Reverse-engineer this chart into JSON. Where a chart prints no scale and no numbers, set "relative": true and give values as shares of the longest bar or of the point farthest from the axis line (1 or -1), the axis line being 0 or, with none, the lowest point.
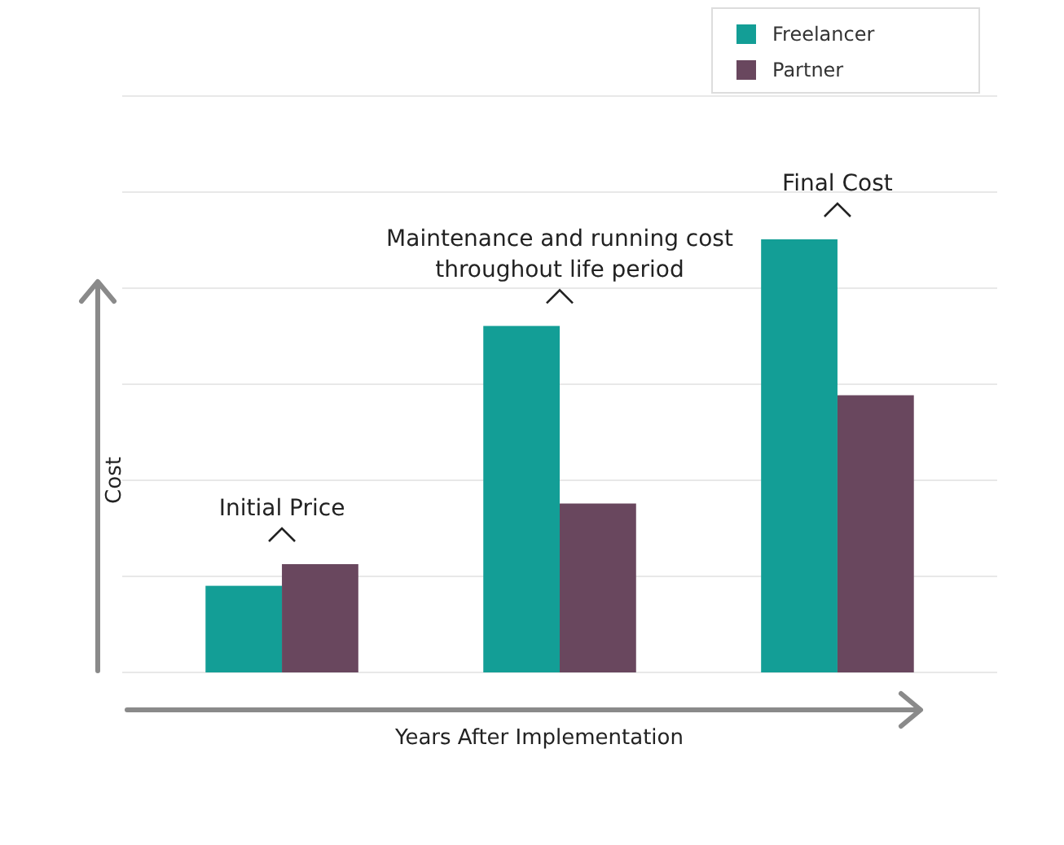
{
  "chart_data": {
    "type": "bar",
    "relative": true,
    "xlabel": "Years After Implementation",
    "ylabel": "Cost",
    "categories": [
      null,
      null,
      null
    ],
    "series": [
      {
        "name": "Freelancer",
        "color": "#139e96",
        "values": [
          0.2,
          0.8,
          1
        ]
      },
      {
        "name": "Partner",
        "color": "#69475e",
        "values": [
          0.25,
          0.39,
          0.64
        ]
      }
    ],
    "annotations": [
      "Initial Price",
      "Maintenance and running cost throughout life period",
      "Final Cost"
    ],
    "grid": true,
    "legend": "top right"
  }
}
